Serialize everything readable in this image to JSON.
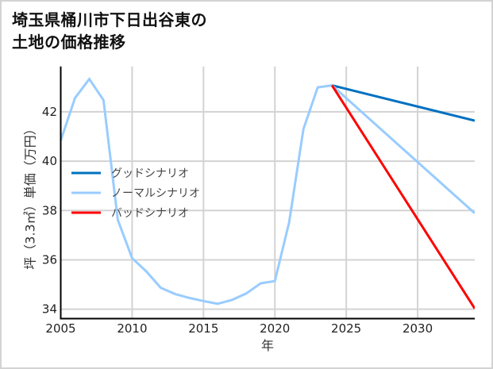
{
  "title": {
    "line1": "埼玉県桶川市下日出谷東の",
    "line2": "土地の価格推移"
  },
  "chart_data": {
    "type": "line",
    "title": "埼玉県桶川市下日出谷東の土地の価格推移",
    "xlabel": "年",
    "ylabel": "坪（3.3㎡）単価（万円）",
    "xlim": [
      2005,
      2034
    ],
    "ylim": [
      33.62,
      43.84
    ],
    "xticks": [
      2005,
      2010,
      2015,
      2020,
      2025,
      2030
    ],
    "yticks": [
      34,
      36,
      38,
      40,
      42
    ],
    "grid": true,
    "legend_position": "center-left",
    "series": [
      {
        "name": "グッドシナリオ",
        "color": "#0070c0",
        "x": [
          2024,
          2034
        ],
        "y": [
          43.07,
          41.64
        ]
      },
      {
        "name": "ノーマルシナリオ",
        "color": "#99ccff",
        "x": [
          2005,
          2006,
          2007,
          2008,
          2009,
          2010,
          2011,
          2012,
          2013,
          2014,
          2015,
          2016,
          2017,
          2018,
          2019,
          2020,
          2021,
          2022,
          2023,
          2024,
          2034
        ],
        "y": [
          40.84,
          42.56,
          43.33,
          42.47,
          37.62,
          36.07,
          35.53,
          34.87,
          34.62,
          34.46,
          34.33,
          34.22,
          34.38,
          34.64,
          35.05,
          35.14,
          37.52,
          41.3,
          42.99,
          43.07,
          37.89
        ]
      },
      {
        "name": "バッドシナリオ",
        "color": "#ff0000",
        "x": [
          2024,
          2034
        ],
        "y": [
          43.07,
          34.03
        ]
      }
    ]
  }
}
